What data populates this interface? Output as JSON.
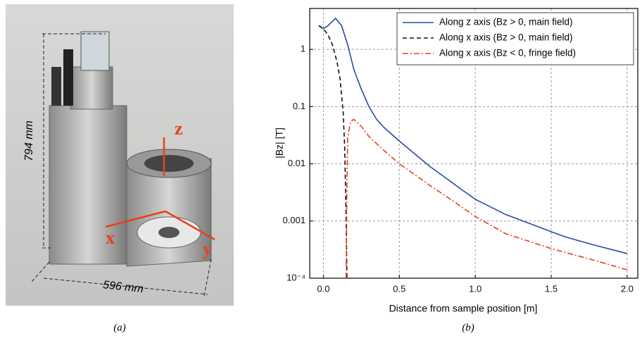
{
  "panel_a": {
    "caption": "(a)",
    "height_label": "794 mm",
    "width_label": "596 mm",
    "axis_labels": [
      "z",
      "x",
      "y"
    ]
  },
  "chart_data": {
    "type": "line",
    "caption": "(b)",
    "x_label": "Distance from sample position [m]",
    "y_label": "|Bz| [T]",
    "xlim": [
      -0.09,
      2.07
    ],
    "ylim": [
      0.0001,
      5.2
    ],
    "log_y": true,
    "grid": true,
    "legend": "upper right",
    "xticks": [
      {
        "value": 0,
        "label": "0.0"
      },
      0.5,
      {
        "value": 1,
        "label": "1.0"
      },
      1.5,
      {
        "value": 2,
        "label": "2.0"
      }
    ],
    "yticks": [
      {
        "value": 0.0001,
        "label": "10⁻⁴"
      },
      0.001,
      0.01,
      0.1,
      1
    ],
    "series": [
      {
        "name": "Along z axis (Bz > 0, main field)",
        "color": "#2a4aa8",
        "dash": "solid",
        "x": [
          -0.03,
          0,
          0.03,
          0.08,
          0.12,
          0.16,
          0.2,
          0.25,
          0.3,
          0.35,
          0.4,
          0.5,
          0.6,
          0.7,
          0.8,
          0.9,
          1.0,
          1.2,
          1.4,
          1.5,
          1.6,
          1.8,
          2.0
        ],
        "values": [
          2.6,
          2.3,
          2.6,
          3.5,
          2.6,
          1.2,
          0.45,
          0.2,
          0.1,
          0.06,
          0.043,
          0.025,
          0.015,
          0.009,
          0.0058,
          0.0037,
          0.0024,
          0.0013,
          0.00082,
          0.00065,
          0.00052,
          0.00037,
          0.00027
        ]
      },
      {
        "name": "Along x axis (Bz > 0, main field)",
        "color": "#111111",
        "dash": "dashed",
        "x": [
          -0.03,
          0,
          0.03,
          0.06,
          0.09,
          0.11,
          0.13,
          0.14,
          0.15,
          0.155
        ],
        "values": [
          2.6,
          2.3,
          1.8,
          1.2,
          0.6,
          0.3,
          0.08,
          0.02,
          0.001,
          0.0001
        ]
      },
      {
        "name": "Along x axis (Bz < 0, fringe field)",
        "color": "#e8401c",
        "dash": "dashdot",
        "x": [
          0.15,
          0.155,
          0.16,
          0.18,
          0.2,
          0.25,
          0.3,
          0.4,
          0.5,
          0.6,
          0.7,
          0.8,
          1.0,
          1.2,
          1.5,
          1.8,
          2.0
        ],
        "values": [
          0.0001,
          0.005,
          0.03,
          0.055,
          0.06,
          0.045,
          0.03,
          0.017,
          0.01,
          0.0065,
          0.0042,
          0.0028,
          0.0012,
          0.0006,
          0.00033,
          0.0002,
          0.00014
        ]
      }
    ]
  }
}
